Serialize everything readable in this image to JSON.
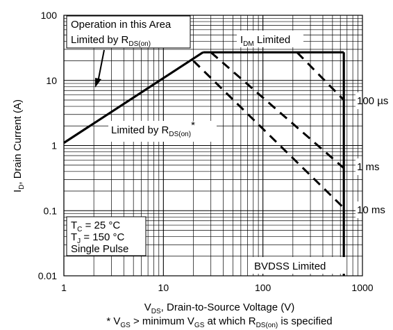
{
  "chart_data": {
    "type": "line",
    "x_scale": "log",
    "y_scale": "log",
    "xlim": [
      1,
      1000
    ],
    "ylim": [
      0.01,
      100
    ],
    "grid": true,
    "x_ticks": [
      "1",
      "10",
      "100",
      "1000"
    ],
    "y_ticks": [
      "100",
      "10",
      "1",
      "0.1",
      "0.01"
    ],
    "x_tick_values": [
      1,
      10,
      100,
      1000
    ],
    "y_tick_values": [
      100,
      10,
      1,
      0.1,
      0.01
    ],
    "xlabel": {
      "main": "V",
      "sub": "DS",
      "rest": ", Drain-to-Source Voltage (V)"
    },
    "ylabel": {
      "main": "I",
      "sub": "D",
      "rest": ", Drain Current (A)"
    },
    "footnote": {
      "p1": "* V",
      "s1": "GS",
      "p2": " > minimum V",
      "s2": "GS",
      "p3": " at which R",
      "s3": "DS(on)",
      "p4": " is specified"
    },
    "series": [
      {
        "name": "R_DS(on) limit",
        "style": "solid",
        "x": [
          1,
          25
        ],
        "y": [
          1.1,
          27
        ]
      },
      {
        "name": "I_DM limit",
        "style": "solid",
        "x": [
          25,
          650
        ],
        "y": [
          27,
          27
        ]
      },
      {
        "name": "BVDSS limit",
        "style": "solid",
        "x": [
          650,
          650
        ],
        "y": [
          27,
          0.01
        ]
      },
      {
        "name": "100 µs",
        "style": "dashed",
        "x": [
          220,
          650
        ],
        "y": [
          27,
          5
        ]
      },
      {
        "name": "1 ms",
        "style": "dashed",
        "x": [
          30,
          650
        ],
        "y": [
          27,
          0.45
        ]
      },
      {
        "name": "10 ms",
        "style": "dashed",
        "x": [
          20,
          650
        ],
        "y": [
          20,
          0.11
        ]
      }
    ],
    "annotations": {
      "operation_line1": "Operation in this Area",
      "operation_line2_main": "Limited by R",
      "operation_line2_sub": "DS(on)",
      "idm_main": "I",
      "idm_sub": "DM",
      "idm_rest": " Limited",
      "rds_main": "Limited by R",
      "rds_sub": "DS(on)",
      "rds_sup": "*",
      "label_100us": "100 µs",
      "label_1ms": "1 ms",
      "label_10ms": "10 ms",
      "tc_main": "T",
      "tc_sub": "C",
      "tc_rest": " = 25 °C",
      "tj_main": "T",
      "tj_sub": "J",
      "tj_rest": " = 150 °C",
      "single_pulse": "Single Pulse",
      "bvdss": "BVDSS Limited"
    }
  }
}
